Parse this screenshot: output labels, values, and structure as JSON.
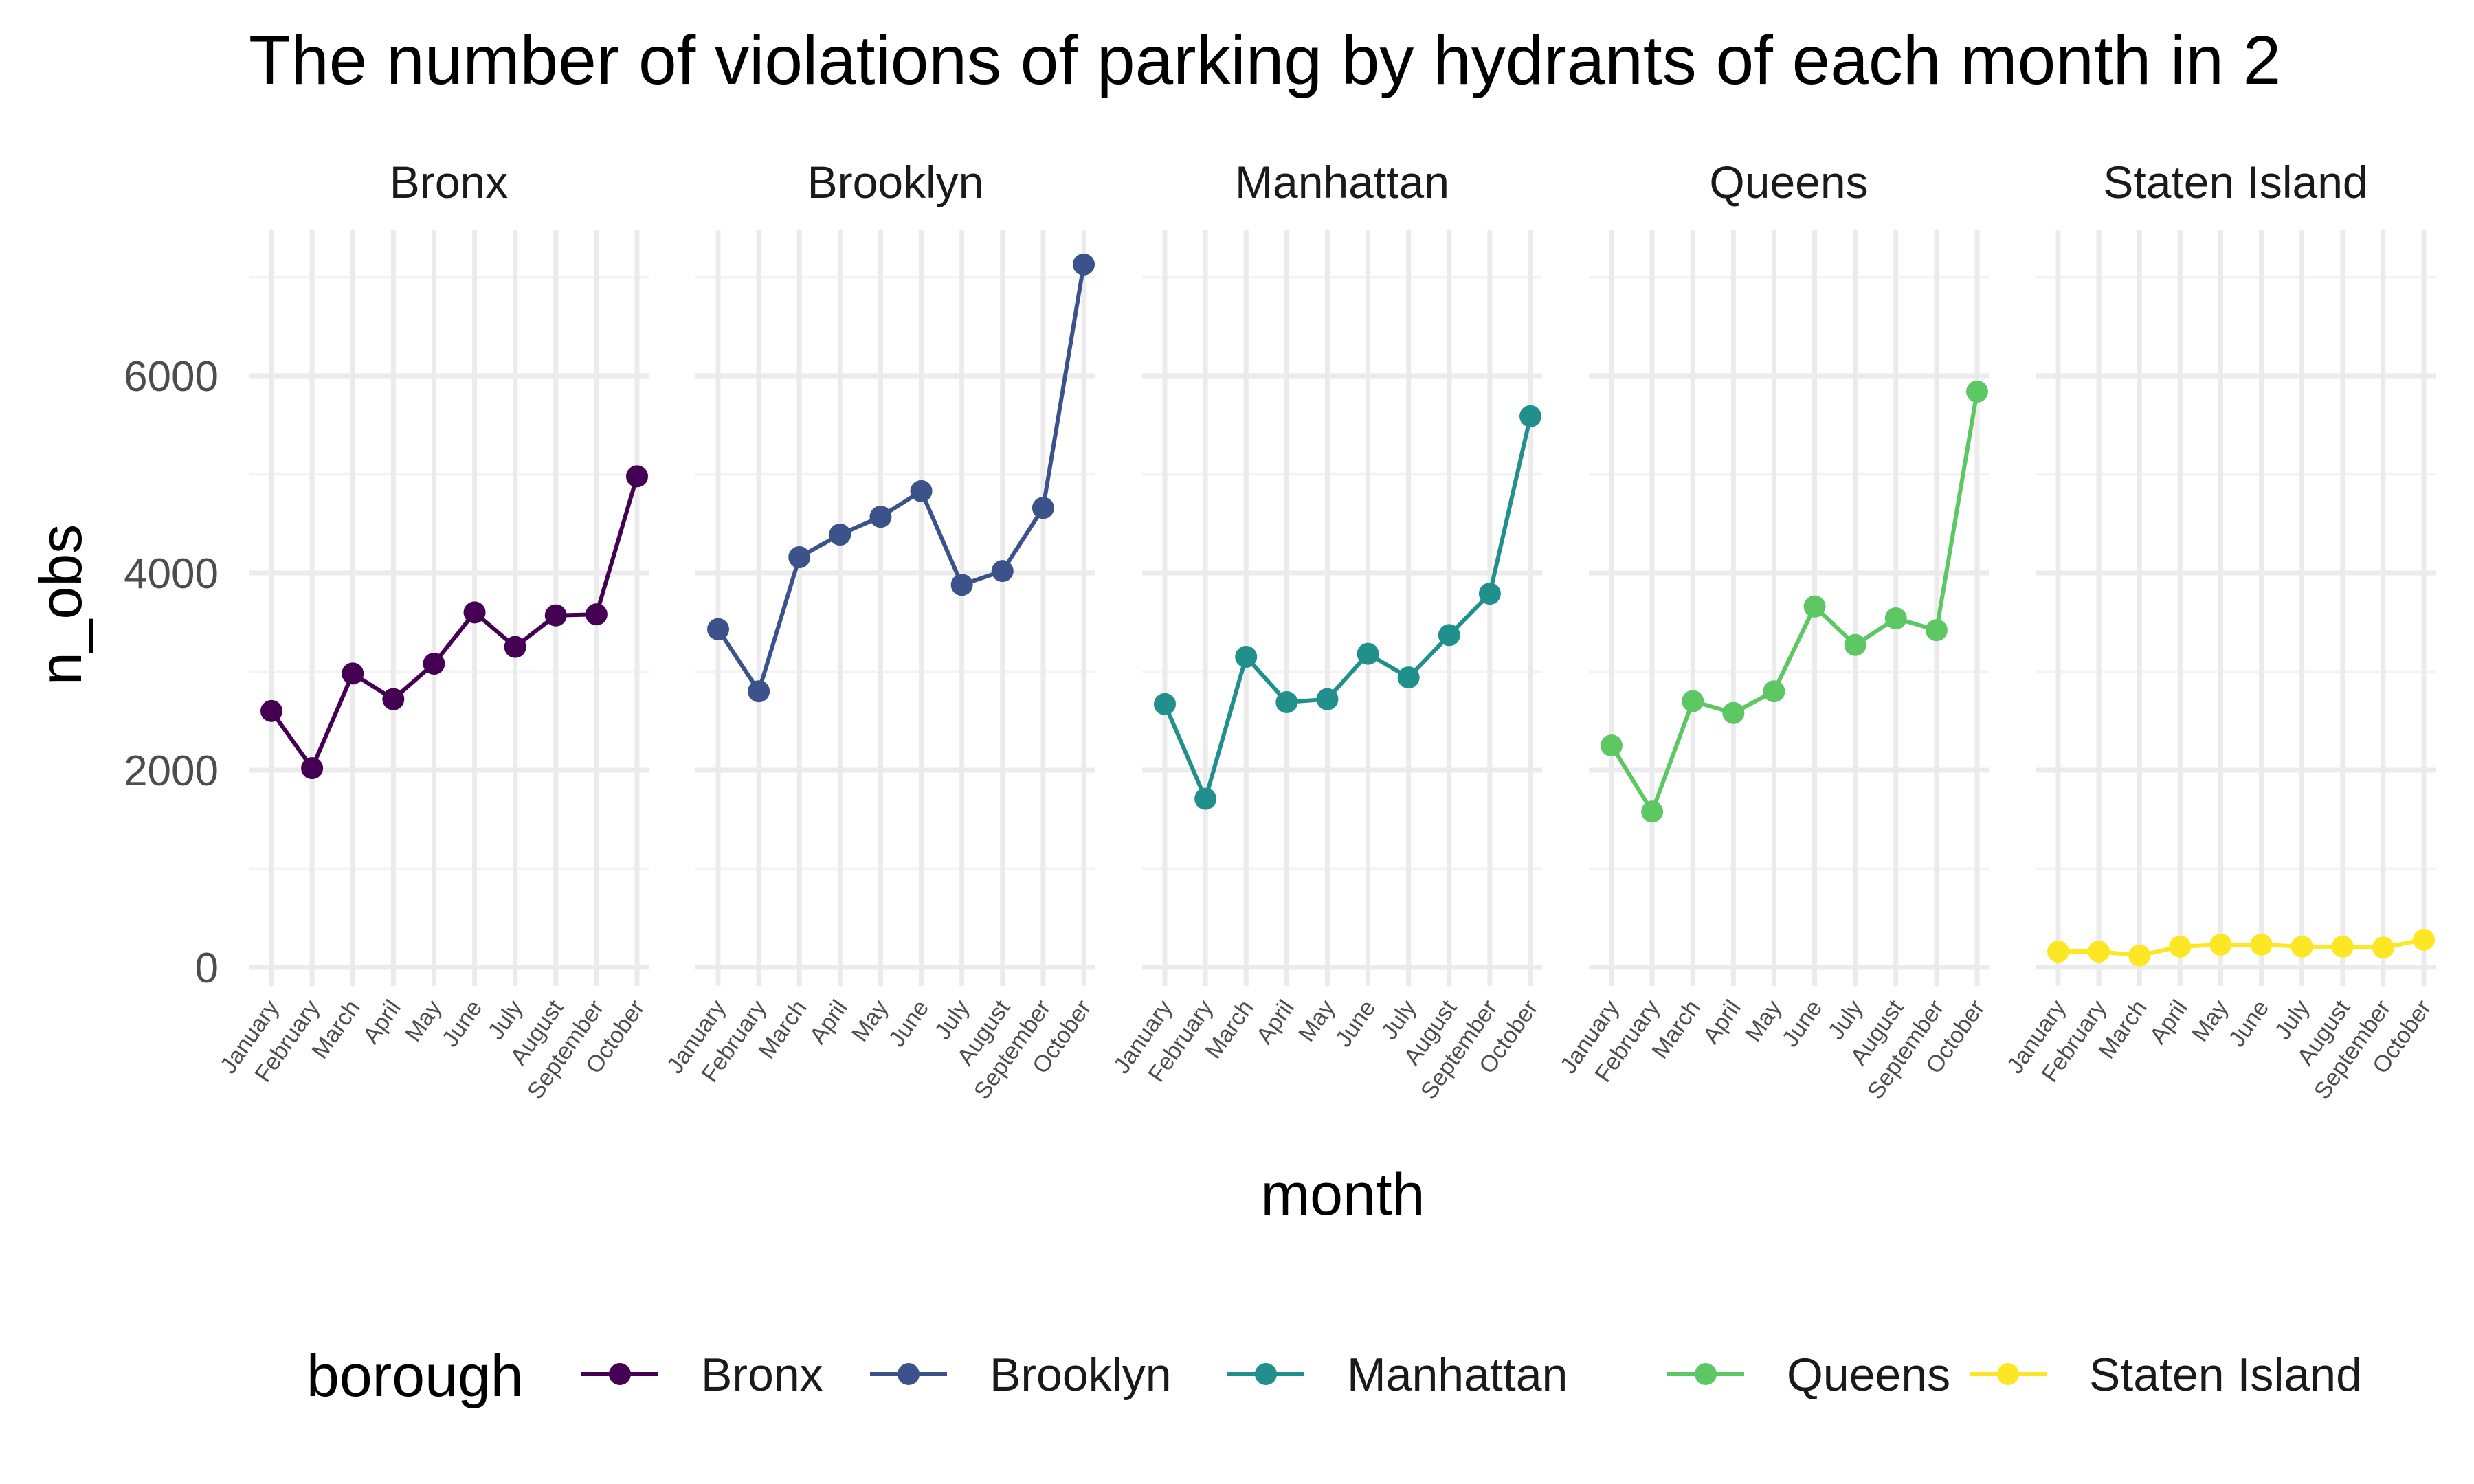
{
  "chart_data": {
    "type": "line",
    "title": "The number of violations of parking by hydrants of each month in 2",
    "xlabel": "month",
    "ylabel": "n_obs",
    "facet_by": "borough",
    "categories": [
      "January",
      "February",
      "March",
      "April",
      "May",
      "June",
      "July",
      "August",
      "September",
      "October"
    ],
    "ylim": [
      -400,
      7300
    ],
    "yticks": [
      0,
      2000,
      4000,
      6000
    ],
    "grid": true,
    "legend": {
      "title": "borough",
      "position": "bottom"
    },
    "series": [
      {
        "name": "Bronx",
        "color": "#440154",
        "values": [
          2600,
          2020,
          2980,
          2720,
          3080,
          3600,
          3250,
          3570,
          3580,
          4980
        ]
      },
      {
        "name": "Brooklyn",
        "color": "#3b528b",
        "values": [
          3430,
          2800,
          4160,
          4390,
          4570,
          4830,
          3880,
          4020,
          4660,
          7130
        ]
      },
      {
        "name": "Manhattan",
        "color": "#21908c",
        "values": [
          2670,
          1710,
          3150,
          2690,
          2720,
          3180,
          2940,
          3370,
          3790,
          5590
        ]
      },
      {
        "name": "Queens",
        "color": "#5dc863",
        "values": [
          2250,
          1580,
          2700,
          2580,
          2800,
          3660,
          3270,
          3540,
          3420,
          5840
        ]
      },
      {
        "name": "Staten Island",
        "color": "#fde725",
        "values": [
          160,
          160,
          120,
          210,
          230,
          230,
          210,
          210,
          200,
          280
        ]
      }
    ]
  }
}
